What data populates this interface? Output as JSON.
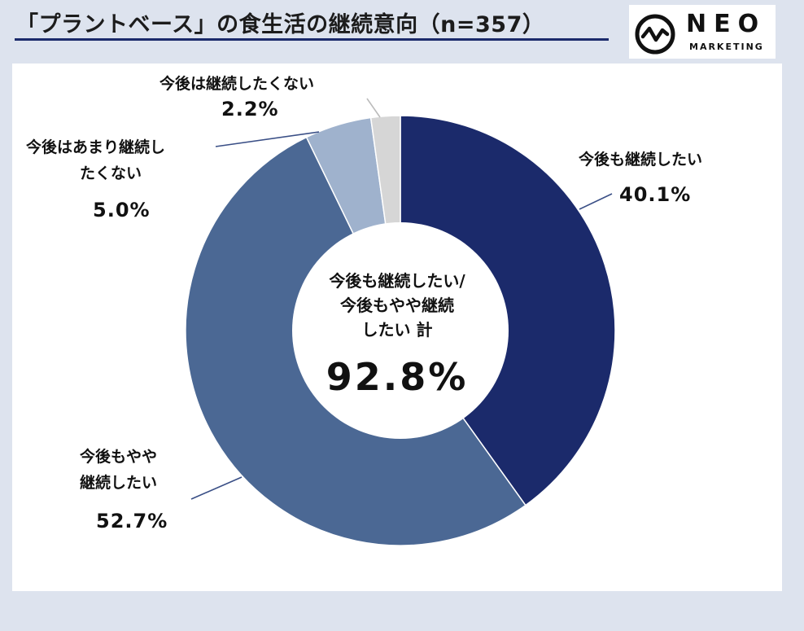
{
  "title": "「プラントベース」の食生活の継続意向（n=357）",
  "logo": {
    "word": "NEO",
    "sub": "MARKETING",
    "icon": "pulse-circle-icon"
  },
  "chart_data": {
    "type": "pie",
    "variant": "donut",
    "title": "「プラントベース」の食生活の継続意向（n=357）",
    "unit": "%",
    "categories": [
      "今後も継続したい",
      "今後もやや継続したい",
      "今後はあまり継続したくない",
      "今後は継続したくない"
    ],
    "values": [
      40.1,
      52.7,
      5.0,
      2.2
    ],
    "colors": [
      "#1b2a6b",
      "#4b6894",
      "#9fb2cd",
      "#d6d6d6"
    ],
    "labels": [
      {
        "lines": [
          "今後も継続したい"
        ],
        "pct": "40.1%"
      },
      {
        "lines": [
          "今後もやや",
          "継続したい"
        ],
        "pct": "52.7%"
      },
      {
        "lines": [
          "今後はあまり継続し",
          "たくない"
        ],
        "pct": "5.0%"
      },
      {
        "lines": [
          "今後は継続したくない"
        ],
        "pct": "2.2%"
      }
    ],
    "center": {
      "lines": [
        "今後も継続したい/",
        "今後もやや継続",
        "したい 計"
      ],
      "value": "92.8%"
    }
  }
}
